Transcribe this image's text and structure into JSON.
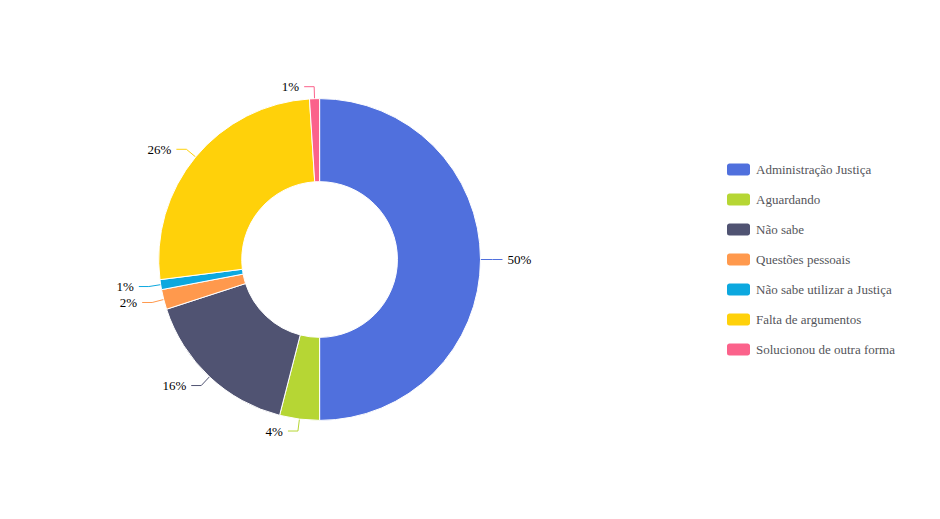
{
  "chart_data": {
    "type": "pie",
    "categories": [
      "Administração Justiça",
      "Aguardando",
      "Não sabe",
      "Questões pessoais",
      "Não sabe utilizar a Justiça",
      "Falta de argumentos",
      "Solucionou de outra forma"
    ],
    "values": [
      50,
      4,
      16,
      2,
      1,
      26,
      1
    ],
    "value_labels": [
      "50%",
      "4%",
      "16%",
      "2%",
      "1%",
      "26%",
      "1%"
    ],
    "data_labels": true,
    "legend": "right"
  }
}
